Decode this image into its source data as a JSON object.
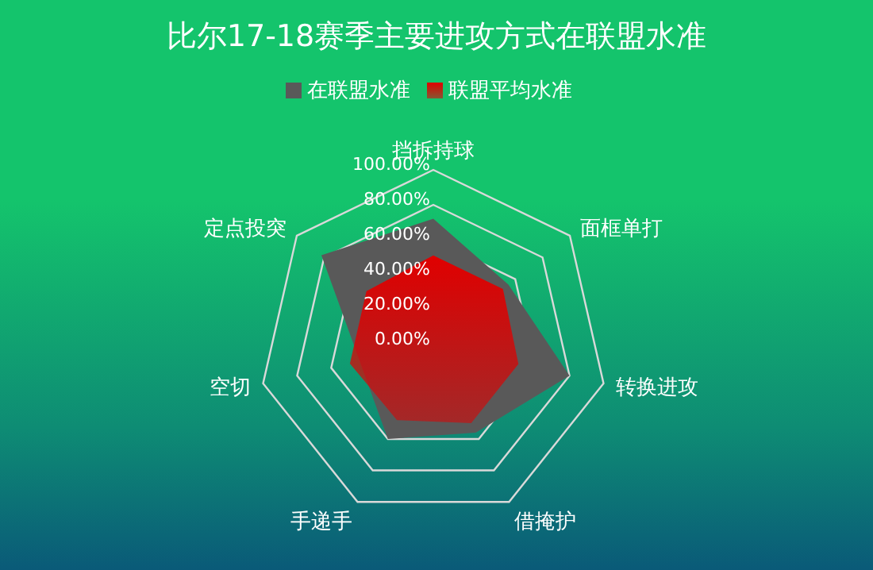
{
  "chart_data": {
    "type": "radar",
    "title": "比尔17-18赛季主要进攻方式在联盟水准",
    "categories": [
      "挡拆持球",
      "面框单打",
      "转换进攻",
      "借掩护",
      "手递手",
      "空切",
      "定点投突"
    ],
    "series": [
      {
        "name": "在联盟水准",
        "color": "#595959",
        "values": [
          72,
          55,
          80,
          56,
          60,
          null,
          82
        ]
      },
      {
        "name": "联盟平均水准",
        "color": "#e00000",
        "values": [
          51,
          51,
          50,
          50,
          48,
          49,
          49
        ]
      }
    ],
    "ylim": [
      0,
      100
    ],
    "yticks": [
      {
        "value": 0,
        "label": "0.00%"
      },
      {
        "value": 20,
        "label": "20.00%"
      },
      {
        "value": 40,
        "label": "40.00%"
      },
      {
        "value": 60,
        "label": "60.00%"
      },
      {
        "value": 80,
        "label": "80.00%"
      },
      {
        "value": 100,
        "label": "100.00%"
      }
    ],
    "grid": true,
    "legend": "top"
  }
}
